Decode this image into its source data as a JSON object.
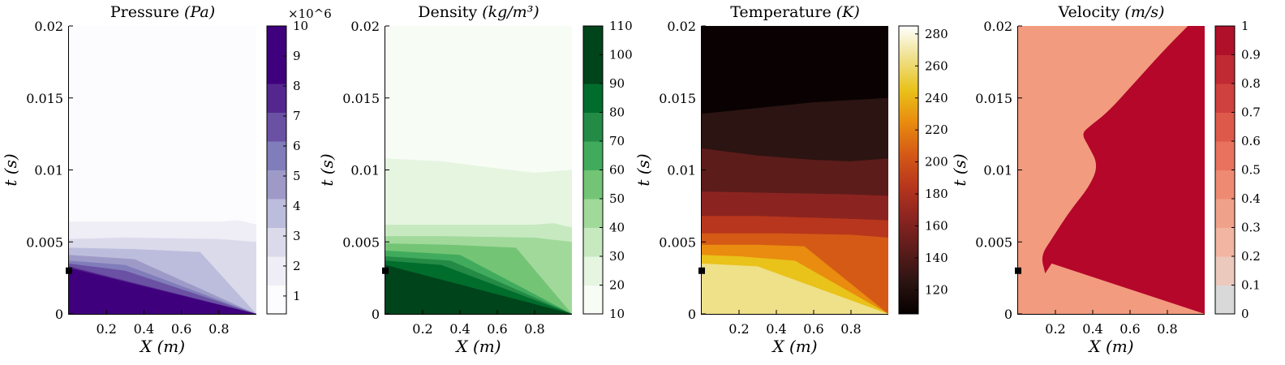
{
  "chart_data": [
    {
      "type": "heatmap",
      "title": "Pressure",
      "title_unit": "(Pa)",
      "xlabel": "X (m)",
      "ylabel": "t (s)",
      "xlim": [
        0,
        1
      ],
      "ylim": [
        0,
        0.02
      ],
      "xticks": [
        0.2,
        0.4,
        0.6,
        0.8
      ],
      "yticks": [
        "0",
        "0.005",
        "0.01",
        "0.015",
        "0.02"
      ],
      "marker": {
        "x": 0,
        "y": 0.003
      },
      "colorbar": {
        "ticks": [
          "1",
          "2",
          "3",
          "4",
          "5",
          "6",
          "7",
          "8",
          "9",
          "10"
        ],
        "multiplier": "×10^6",
        "levels": 10,
        "colors": [
          "#fcfbfd",
          "#efedf5",
          "#dadaeb",
          "#bcbddc",
          "#9e9ac8",
          "#807dba",
          "#6a51a3",
          "#54278f",
          "#3f007d",
          "#3f007d"
        ]
      },
      "contours": [
        {
          "level": "1",
          "t_at_x": [
            [
              0,
              0.0064
            ],
            [
              0.3,
              0.0064
            ],
            [
              0.8,
              0.0064
            ],
            [
              0.9,
              0.0065
            ],
            [
              1,
              0.0062
            ]
          ]
        },
        {
          "level": "2",
          "t_at_x": [
            [
              0,
              0.0052
            ],
            [
              0.3,
              0.0053
            ],
            [
              0.8,
              0.0052
            ],
            [
              1,
              0.005
            ]
          ]
        },
        {
          "level": "3",
          "t_at_x": [
            [
              0,
              0.0046
            ],
            [
              0.35,
              0.0045
            ],
            [
              0.7,
              0.0043
            ],
            [
              1,
              0.0
            ]
          ]
        },
        {
          "level": "4",
          "t_at_x": [
            [
              0,
              0.0041
            ],
            [
              0.35,
              0.0038
            ],
            [
              1,
              0.0
            ]
          ]
        },
        {
          "level": "5",
          "t_at_x": [
            [
              0,
              0.0037
            ],
            [
              0.3,
              0.0034
            ],
            [
              1,
              0.0
            ]
          ]
        },
        {
          "level": "6",
          "t_at_x": [
            [
              0,
              0.0035
            ],
            [
              0.3,
              0.003
            ],
            [
              1,
              0.0
            ]
          ]
        },
        {
          "level": "7",
          "t_at_x": [
            [
              0,
              0.0033
            ],
            [
              1,
              0.0
            ]
          ]
        },
        {
          "level": "8",
          "t_at_x": [
            [
              0,
              0.0032
            ],
            [
              1,
              0.0
            ]
          ]
        },
        {
          "level": "9",
          "t_at_x": [
            [
              0,
              0.003
            ],
            [
              1,
              0.0
            ]
          ]
        }
      ]
    },
    {
      "type": "heatmap",
      "title": "Density",
      "title_unit": "(kg/m³)",
      "xlabel": "X (m)",
      "ylabel": "t (s)",
      "xlim": [
        0,
        1
      ],
      "ylim": [
        0,
        0.02
      ],
      "xticks": [
        0.2,
        0.4,
        0.6,
        0.8
      ],
      "yticks": [
        "0",
        "0.005",
        "0.01",
        "0.015",
        "0.02"
      ],
      "marker": {
        "x": 0,
        "y": 0.003
      },
      "colorbar": {
        "ticks": [
          "10",
          "20",
          "30",
          "40",
          "50",
          "60",
          "70",
          "80",
          "90",
          "100",
          "110"
        ],
        "levels": 10,
        "colors": [
          "#f7fcf5",
          "#e5f5e0",
          "#c7e9c0",
          "#a1d99b",
          "#74c476",
          "#41ab5d",
          "#238b45",
          "#006d2c",
          "#00441b",
          "#00441b"
        ]
      },
      "contours": [
        {
          "level": "20",
          "t_at_x": [
            [
              0,
              0.0108
            ],
            [
              0.3,
              0.0106
            ],
            [
              0.6,
              0.0101
            ],
            [
              0.8,
              0.0098
            ],
            [
              1,
              0.01
            ]
          ]
        },
        {
          "level": "30",
          "t_at_x": [
            [
              0,
              0.0062
            ],
            [
              0.3,
              0.0062
            ],
            [
              0.8,
              0.0062
            ],
            [
              0.9,
              0.0063
            ],
            [
              1,
              0.006
            ]
          ]
        },
        {
          "level": "40",
          "t_at_x": [
            [
              0,
              0.0054
            ],
            [
              0.3,
              0.0054
            ],
            [
              0.8,
              0.0053
            ],
            [
              1,
              0.005
            ]
          ]
        },
        {
          "level": "50",
          "t_at_x": [
            [
              0,
              0.0049
            ],
            [
              0.35,
              0.0048
            ],
            [
              0.7,
              0.0046
            ],
            [
              1,
              0.0
            ]
          ]
        },
        {
          "level": "60",
          "t_at_x": [
            [
              0,
              0.0044
            ],
            [
              0.4,
              0.0041
            ],
            [
              1,
              0.0
            ]
          ]
        },
        {
          "level": "70",
          "t_at_x": [
            [
              0,
              0.004
            ],
            [
              0.35,
              0.0037
            ],
            [
              1,
              0.0
            ]
          ]
        },
        {
          "level": "80",
          "t_at_x": [
            [
              0,
              0.0037
            ],
            [
              0.3,
              0.0034
            ],
            [
              1,
              0.0
            ]
          ]
        },
        {
          "level": "90",
          "t_at_x": [
            [
              0,
              0.0034
            ],
            [
              1,
              0.0
            ]
          ]
        },
        {
          "level": "100",
          "t_at_x": [
            [
              0,
              0.0032
            ],
            [
              1,
              0.0
            ]
          ]
        }
      ]
    },
    {
      "type": "heatmap",
      "title": "Temperature",
      "title_unit": "(K)",
      "xlabel": "X (m)",
      "ylabel": "t (s)",
      "xlim": [
        0,
        1
      ],
      "ylim": [
        0,
        0.02
      ],
      "xticks": [
        0.2,
        0.4,
        0.6,
        0.8
      ],
      "yticks": [
        "0",
        "0.005",
        "0.01",
        "0.015",
        "0.02"
      ],
      "marker": {
        "x": 0,
        "y": 0.003
      },
      "colorbar": {
        "ticks": [
          "120",
          "140",
          "160",
          "180",
          "200",
          "220",
          "240",
          "260",
          "280"
        ],
        "range": [
          105,
          285
        ],
        "colors": [
          "#050000",
          "#2b1412",
          "#5c1c1a",
          "#8b2420",
          "#b8361d",
          "#d55a16",
          "#e98c0f",
          "#e9c21a",
          "#efe08a",
          "#ffffff"
        ]
      },
      "bands": [
        {
          "color": "#0a0202"
        },
        {
          "color": "#2b1412"
        },
        {
          "color": "#5c1c1a"
        },
        {
          "color": "#8b2420"
        },
        {
          "color": "#b8361d"
        },
        {
          "color": "#d55a16"
        },
        {
          "color": "#e98c0f"
        },
        {
          "color": "#e9c21a"
        },
        {
          "color": "#efe08a"
        }
      ],
      "contours": [
        {
          "t_at_x": [
            [
              0,
              0.0139
            ],
            [
              0.3,
              0.0143
            ],
            [
              0.6,
              0.0147
            ],
            [
              1,
              0.015
            ]
          ]
        },
        {
          "t_at_x": [
            [
              0,
              0.0115
            ],
            [
              0.3,
              0.011
            ],
            [
              0.6,
              0.0107
            ],
            [
              0.8,
              0.0106
            ],
            [
              1,
              0.0108
            ]
          ]
        },
        {
          "t_at_x": [
            [
              0,
              0.0085
            ],
            [
              0.4,
              0.0084
            ],
            [
              0.8,
              0.0083
            ],
            [
              1,
              0.0082
            ]
          ]
        },
        {
          "t_at_x": [
            [
              0,
              0.0068
            ],
            [
              0.3,
              0.0068
            ],
            [
              0.8,
              0.0066
            ],
            [
              1,
              0.0065
            ]
          ]
        },
        {
          "t_at_x": [
            [
              0,
              0.0056
            ],
            [
              0.4,
              0.0056
            ],
            [
              0.8,
              0.0055
            ],
            [
              1,
              0.0053
            ]
          ]
        },
        {
          "t_at_x": [
            [
              0,
              0.0048
            ],
            [
              0.3,
              0.0048
            ],
            [
              0.55,
              0.0047
            ],
            [
              1,
              0.0
            ]
          ]
        },
        {
          "t_at_x": [
            [
              0,
              0.0041
            ],
            [
              0.2,
              0.004
            ],
            [
              0.5,
              0.0037
            ],
            [
              1,
              0.0
            ]
          ]
        },
        {
          "t_at_x": [
            [
              0,
              0.0035
            ],
            [
              0.3,
              0.0033
            ],
            [
              1,
              0.0
            ]
          ]
        },
        {
          "t_at_x": [
            [
              0,
              0.003
            ],
            [
              1,
              0.0
            ]
          ]
        }
      ]
    },
    {
      "type": "heatmap",
      "title": "Velocity",
      "title_unit": "(m/s)",
      "xlabel": "X (m)",
      "ylabel": "t (s)",
      "xlim": [
        0,
        1
      ],
      "ylim": [
        0,
        0.02
      ],
      "xticks": [
        0.2,
        0.4,
        0.6,
        0.8
      ],
      "yticks": [
        "0",
        "0.005",
        "0.01",
        "0.015",
        "0.02"
      ],
      "marker": {
        "x": 0,
        "y": 0.003
      },
      "colorbar": {
        "ticks": [
          "0",
          "0.1",
          "0.2",
          "0.3",
          "0.4",
          "0.5",
          "0.6",
          "0.7",
          "0.8",
          "0.9",
          "1"
        ],
        "levels": 10,
        "colors": [
          "#d9d9d9",
          "#ecc9bd",
          "#f1b5a2",
          "#f0a18a",
          "#ef8a72",
          "#e8725d",
          "#dd5a4b",
          "#cf413e",
          "#bf2a33",
          "#b0102a"
        ]
      },
      "background_color": "#f29b7f",
      "region_color": "#b5072a",
      "region_boundary": [
        [
          0.18,
          0.0
        ],
        [
          0.15,
          0.0027
        ],
        [
          0.12,
          0.004
        ],
        [
          0.18,
          0.0052
        ],
        [
          0.28,
          0.0072
        ],
        [
          0.38,
          0.0088
        ],
        [
          0.43,
          0.0103
        ],
        [
          0.38,
          0.0116
        ],
        [
          0.34,
          0.0125
        ],
        [
          0.38,
          0.013
        ],
        [
          0.48,
          0.014
        ],
        [
          0.62,
          0.016
        ],
        [
          0.78,
          0.0183
        ],
        [
          0.91,
          0.02
        ],
        [
          1,
          0.02
        ],
        [
          1,
          0.0
        ]
      ],
      "lower_boundary": [
        [
          0.18,
          0.0035
        ],
        [
          1,
          0.0
        ]
      ]
    }
  ]
}
